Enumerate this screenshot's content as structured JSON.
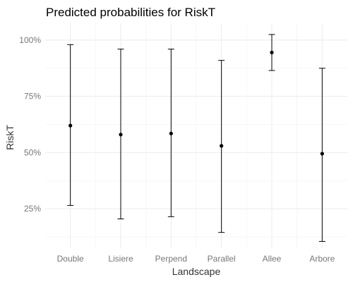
{
  "chart_data": {
    "type": "scatter",
    "subtype": "point-with-error-bars",
    "title": "Predicted probabilities for RiskT",
    "xlabel": "Landscape",
    "ylabel": "RiskT",
    "categories": [
      "Double",
      "Lisiere",
      "Perpend",
      "Parallel",
      "Allee",
      "Arbore"
    ],
    "values": [
      0.62,
      0.58,
      0.585,
      0.53,
      0.945,
      0.495
    ],
    "lower": [
      0.265,
      0.205,
      0.215,
      0.145,
      0.865,
      0.105
    ],
    "upper": [
      0.98,
      0.96,
      0.96,
      0.91,
      1.025,
      0.875
    ],
    "yticks": [
      0.25,
      0.5,
      0.75,
      1.0
    ],
    "ytick_labels": [
      "25%",
      "50%",
      "75%",
      "100%"
    ],
    "ylim": [
      0.075,
      1.075
    ],
    "grid": true,
    "legend": "none",
    "colors": {
      "point": "#000000",
      "grid": "#ebebeb",
      "tick_text": "#777777"
    }
  }
}
